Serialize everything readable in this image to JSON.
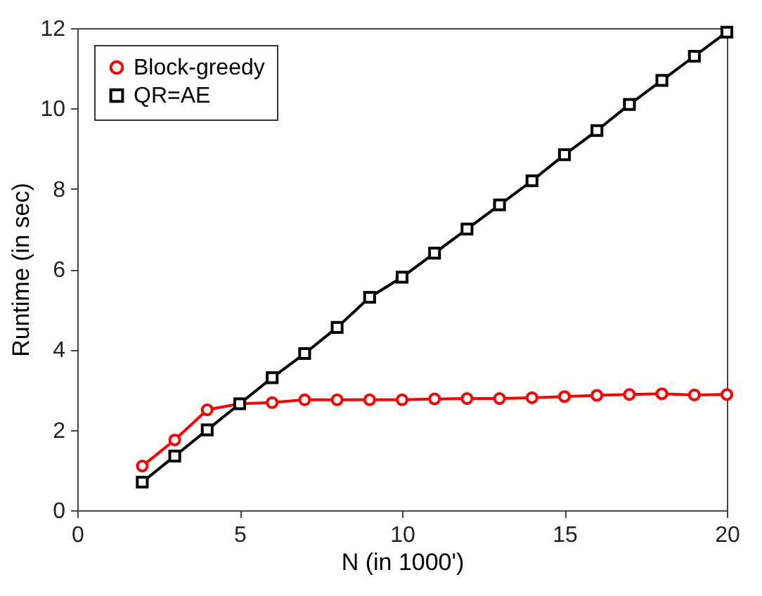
{
  "chart_data": {
    "type": "line",
    "xlabel": "N (in 1000')",
    "ylabel": "Runtime (in sec)",
    "x": [
      2,
      3,
      4,
      5,
      6,
      7,
      8,
      9,
      10,
      11,
      12,
      13,
      14,
      15,
      16,
      17,
      18,
      19,
      20
    ],
    "series": [
      {
        "name": "Block-greedy",
        "color": "#ff0000",
        "marker": "circle",
        "values": [
          1.1,
          1.75,
          2.5,
          2.65,
          2.68,
          2.75,
          2.75,
          2.75,
          2.75,
          2.77,
          2.78,
          2.78,
          2.8,
          2.83,
          2.86,
          2.88,
          2.9,
          2.87,
          2.88
        ]
      },
      {
        "name": "QR=AE",
        "color": "#000000",
        "marker": "square",
        "values": [
          0.7,
          1.35,
          2.0,
          2.65,
          3.3,
          3.9,
          4.55,
          5.3,
          5.8,
          6.4,
          7.0,
          7.6,
          8.2,
          8.85,
          9.45,
          10.1,
          10.7,
          11.3,
          11.9
        ]
      }
    ],
    "xlim": [
      0,
      20
    ],
    "xticks": [
      0,
      5,
      10,
      15,
      20
    ],
    "ylim": [
      0,
      12
    ],
    "yticks": [
      0,
      2,
      4,
      6,
      8,
      10,
      12
    ],
    "grid": false,
    "legend": "top left",
    "line_style": "solid"
  }
}
